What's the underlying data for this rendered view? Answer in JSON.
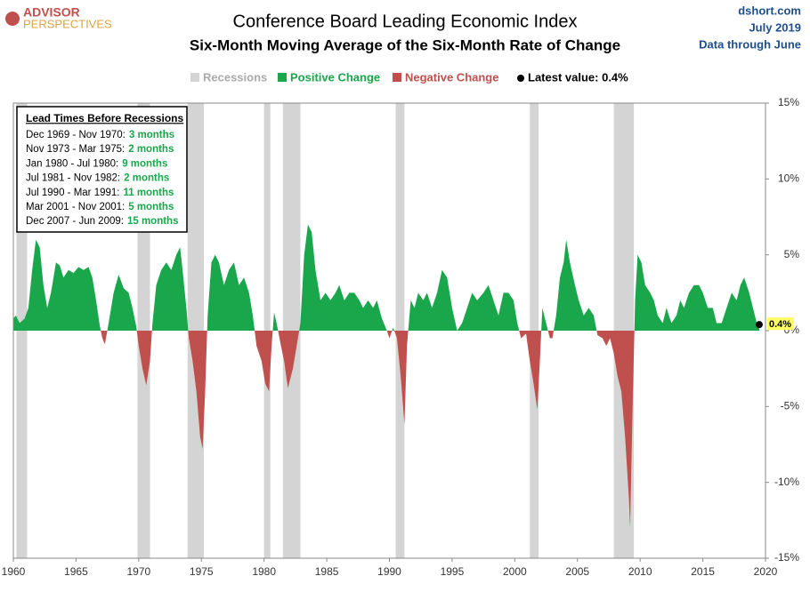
{
  "chart_data": {
    "type": "area",
    "logo": [
      "ADVISOR",
      "PERSPECTIVES"
    ],
    "title": "Conference Board Leading Economic Index",
    "subtitle": "Six-Month  Moving Average of the Six-Month  Rate of Change",
    "source": [
      "dshort.com",
      "July 2019",
      "Data through June"
    ],
    "legend": {
      "recessions": "Recessions",
      "positive": "Positive Change",
      "negative": "Negative Change",
      "latest": "Latest value: 0.4%"
    },
    "colors": {
      "positive": "#1aa64a",
      "negative": "#c0504d",
      "recession": "#d4d4d4"
    },
    "lead_times_title": "Lead Times Before Recessions",
    "lead_times": [
      {
        "period": "Dec 1969 - Nov 1970:",
        "lead": "3 months"
      },
      {
        "period": "Nov 1973 - Mar 1975:",
        "lead": "2 months"
      },
      {
        "period": "Jan 1980 - Jul 1980:",
        "lead": "9 months"
      },
      {
        "period": "Jul 1981 - Nov 1982:",
        "lead": "2 months"
      },
      {
        "period": "Jul 1990 - Mar 1991:",
        "lead": "11 months"
      },
      {
        "period": "Mar 2001 - Nov 2001:",
        "lead": "5 months"
      },
      {
        "period": "Dec 2007 - Jun 2009:",
        "lead": "15 months"
      }
    ],
    "recessions": [
      [
        1960.25,
        1961.1
      ],
      [
        1969.9,
        1970.9
      ],
      [
        1973.9,
        1975.2
      ],
      [
        1980.0,
        1980.5
      ],
      [
        1981.5,
        1982.9
      ],
      [
        1990.5,
        1991.2
      ],
      [
        2001.2,
        2001.9
      ],
      [
        2007.9,
        2009.5
      ]
    ],
    "x": [
      1960.0,
      1960.2,
      1960.5,
      1960.9,
      1961.2,
      1961.5,
      1961.8,
      1962.1,
      1962.4,
      1962.7,
      1963.0,
      1963.4,
      1963.7,
      1964.0,
      1964.4,
      1964.8,
      1965.2,
      1965.6,
      1966.0,
      1966.3,
      1966.6,
      1966.9,
      1967.1,
      1967.3,
      1967.6,
      1968.0,
      1968.4,
      1968.8,
      1969.2,
      1969.5,
      1969.8,
      1970.0,
      1970.3,
      1970.6,
      1970.9,
      1971.1,
      1971.4,
      1971.8,
      1972.2,
      1972.6,
      1973.0,
      1973.3,
      1973.5,
      1973.8,
      1974.0,
      1974.3,
      1974.6,
      1974.9,
      1975.1,
      1975.3,
      1975.5,
      1975.8,
      1976.1,
      1976.4,
      1976.8,
      1977.2,
      1977.6,
      1978.0,
      1978.4,
      1978.8,
      1979.1,
      1979.4,
      1979.8,
      1980.1,
      1980.4,
      1980.6,
      1980.8,
      1981.0,
      1981.3,
      1981.6,
      1981.9,
      1982.3,
      1982.6,
      1982.9,
      1983.2,
      1983.5,
      1983.8,
      1984.1,
      1984.5,
      1984.9,
      1985.3,
      1985.7,
      1986.0,
      1986.4,
      1986.8,
      1987.2,
      1987.6,
      1987.9,
      1988.3,
      1988.7,
      1989.0,
      1989.4,
      1989.8,
      1990.0,
      1990.3,
      1990.6,
      1990.9,
      1991.2,
      1991.4,
      1991.7,
      1992.0,
      1992.3,
      1992.7,
      1993.0,
      1993.4,
      1993.8,
      1994.2,
      1994.6,
      1995.0,
      1995.4,
      1995.8,
      1996.2,
      1996.6,
      1997.0,
      1997.5,
      1997.9,
      1998.3,
      1998.7,
      1999.1,
      1999.5,
      1999.9,
      2000.2,
      2000.5,
      2000.9,
      2001.2,
      2001.5,
      2001.8,
      2002.0,
      2002.2,
      2002.5,
      2002.8,
      2003.0,
      2003.3,
      2003.6,
      2003.9,
      2004.1,
      2004.4,
      2004.8,
      2005.1,
      2005.5,
      2005.9,
      2006.3,
      2006.6,
      2007.0,
      2007.3,
      2007.6,
      2007.9,
      2008.2,
      2008.5,
      2008.8,
      2009.1,
      2009.2,
      2009.4,
      2009.6,
      2009.8,
      2010.1,
      2010.4,
      2010.8,
      2011.1,
      2011.4,
      2011.8,
      2012.1,
      2012.5,
      2012.9,
      2013.2,
      2013.5,
      2013.9,
      2014.3,
      2014.7,
      2015.0,
      2015.4,
      2015.8,
      2016.1,
      2016.5,
      2016.9,
      2017.3,
      2017.7,
      2018.0,
      2018.3,
      2018.7,
      2019.0,
      2019.3,
      2019.5
    ],
    "series": [
      {
        "name": "Six-Month Moving Average",
        "values": [
          0.8,
          1.0,
          0.5,
          0.8,
          1.5,
          4.0,
          6.0,
          5.5,
          3.0,
          1.5,
          2.5,
          4.5,
          4.3,
          3.5,
          4.0,
          3.8,
          4.2,
          4.0,
          4.2,
          3.5,
          2.0,
          0.3,
          -0.5,
          -0.9,
          0.5,
          2.5,
          3.7,
          2.8,
          2.5,
          1.5,
          0.3,
          -1.0,
          -2.5,
          -3.6,
          -2.0,
          0.5,
          3.0,
          4.0,
          4.5,
          4.0,
          5.0,
          5.5,
          4.0,
          1.5,
          -0.5,
          -2.0,
          -4.0,
          -7.0,
          -7.8,
          -4.0,
          1.0,
          4.5,
          5.0,
          4.5,
          3.0,
          4.0,
          4.5,
          3.0,
          3.5,
          2.5,
          1.0,
          -1.0,
          -2.0,
          -3.5,
          -4.0,
          -1.0,
          1.2,
          0.5,
          -0.8,
          -2.0,
          -3.8,
          -2.5,
          -1.0,
          0.5,
          5.0,
          7.0,
          6.5,
          4.0,
          2.0,
          2.5,
          2.0,
          2.5,
          3.0,
          2.0,
          2.5,
          2.5,
          2.0,
          1.5,
          2.0,
          1.5,
          2.0,
          0.8,
          0.0,
          -0.5,
          0.2,
          -0.5,
          -3.0,
          -6.2,
          -1.0,
          2.0,
          1.5,
          2.5,
          2.0,
          2.5,
          1.5,
          2.5,
          4.0,
          3.5,
          1.5,
          0.0,
          0.5,
          1.5,
          2.5,
          2.0,
          2.5,
          3.0,
          2.0,
          1.0,
          2.5,
          2.5,
          2.0,
          0.5,
          -0.5,
          -0.2,
          -2.0,
          -3.5,
          -5.2,
          -2.0,
          1.5,
          0.5,
          -0.5,
          -0.5,
          1.0,
          3.5,
          4.5,
          6.0,
          4.5,
          3.0,
          2.0,
          1.0,
          1.5,
          1.0,
          -0.3,
          -0.5,
          -1.0,
          -0.5,
          -1.5,
          -3.0,
          -4.0,
          -7.0,
          -11.0,
          -13.0,
          -5.0,
          2.0,
          5.0,
          4.5,
          3.0,
          2.5,
          2.0,
          1.0,
          0.5,
          1.5,
          0.5,
          1.0,
          2.0,
          1.5,
          2.5,
          3.0,
          3.0,
          2.5,
          1.5,
          1.5,
          0.5,
          0.5,
          1.5,
          2.5,
          2.0,
          3.0,
          3.5,
          2.5,
          1.5,
          0.5,
          0.4
        ]
      }
    ],
    "latest": {
      "x": 2019.5,
      "value": 0.4,
      "label": "0.4%"
    },
    "xlim": [
      1960,
      2020
    ],
    "xticks": [
      1960,
      1965,
      1970,
      1975,
      1980,
      1985,
      1990,
      1995,
      2000,
      2005,
      2010,
      2015,
      2020
    ],
    "ylim": [
      -15,
      15
    ],
    "yticks": [
      {
        "value": -15,
        "label": "-15%"
      },
      {
        "value": -10,
        "label": "-10%"
      },
      {
        "value": -5,
        "label": "-5%"
      },
      {
        "value": 0,
        "label": "0%"
      },
      {
        "value": 5,
        "label": "5%"
      },
      {
        "value": 10,
        "label": "10%"
      },
      {
        "value": 15,
        "label": "15%"
      }
    ]
  }
}
